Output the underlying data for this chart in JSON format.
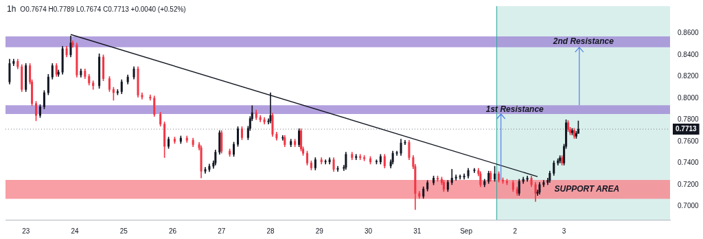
{
  "chart_data": {
    "type": "candlestick",
    "title": "1h",
    "subtitle": "O0.7674 H0.7789 L0.7674 C0.7713 +0.0040 (+0.52%)",
    "x": [
      "--08-22T16:00",
      "--08-22T18:00",
      "--08-22T20:00",
      "--08-22T22:00",
      "--08-23T00:00",
      "--08-23T02:00",
      "--08-23T03:00",
      "--08-23T05:00",
      "--08-23T07:00",
      "--08-23T09:00",
      "--08-23T11:00",
      "--08-23T13:00",
      "--08-23T15:00",
      "--08-23T16:00",
      "--08-23T18:00",
      "--08-23T20:00",
      "--08-23T22:00",
      "--08-23T23:00",
      "--08-24T01:00",
      "--08-24T03:00",
      "--08-24T05:00",
      "--08-24T07:00",
      "--08-24T09:00",
      "--08-24T12:00",
      "--08-24T14:00",
      "--08-24T17:00",
      "--08-24T19:00",
      "--08-24T21:00",
      "--08-24T23:00",
      "--08-25T02:00",
      "--08-25T05:00",
      "--08-25T07:00",
      "--08-25T09:00",
      "--08-25T13:00",
      "--08-25T15:00",
      "--08-25T18:00",
      "--08-25T20:00",
      "--08-25T22:00",
      "--08-26T01:00",
      "--08-26T04:00",
      "--08-26T07:00",
      "--08-26T10:00",
      "--08-26T13:00",
      "--08-26T14:00",
      "--08-26T16:00",
      "--08-26T18:00",
      "--08-26T20:00",
      "--08-26T21:00",
      "--08-26T23:00",
      "--08-27T00:00",
      "--08-27T04:00",
      "--08-27T06:00",
      "--08-27T08:00",
      "--08-27T10:00",
      "--08-27T13:00",
      "--08-27T14:00",
      "--08-27T15:00",
      "--08-27T17:00",
      "--08-27T19:00",
      "--08-27T21:00",
      "--08-27T23:00",
      "--08-28T00:00",
      "--08-28T01:00",
      "--08-28T03:00",
      "--08-28T06:00",
      "--08-28T07:00",
      "--08-28T10:00",
      "--08-28T12:00",
      "--08-28T14:00",
      "--08-28T15:00",
      "--08-28T16:00",
      "--08-28T18:00",
      "--08-28T20:00",
      "--08-28T22:00",
      "--08-29T01:00",
      "--08-29T03:00",
      "--08-29T05:00",
      "--08-29T07:00",
      "--08-29T09:00",
      "--08-29T12:00",
      "--08-29T13:00",
      "--08-29T16:00",
      "--08-29T18:00",
      "--08-29T20:00",
      "--08-29T22:00",
      "--08-30T01:00",
      "--08-30T04:00",
      "--08-30T06:00",
      "--08-30T08:00",
      "--08-30T11:00",
      "--08-30T12:00",
      "--08-30T14:00",
      "--08-30T16:00",
      "--08-30T18:00",
      "--08-30T20:00",
      "--08-30T22:00",
      "--08-30T23:00",
      "--08-31T01:00",
      "--08-31T03:00",
      "--08-31T05:00",
      "--08-31T08:00",
      "--08-31T10:00",
      "--08-31T12:00",
      "--08-31T13:00",
      "--08-31T15:00",
      "--08-31T17:00",
      "--08-31T19:00",
      "--08-31T21:00",
      "--08-31T23:00",
      "--09-01T01:00",
      "--09-01T04:00",
      "--09-01T06:00",
      "--09-01T07:00",
      "--09-01T09:00",
      "--09-01T11:00",
      "--09-01T12:00",
      "--09-01T14:00",
      "--09-01T16:00",
      "--09-01T18:00",
      "--09-01T20:00",
      "--09-01T23:00",
      "--09-02T01:00",
      "--09-02T02:00",
      "--09-02T04:00",
      "--09-02T06:00",
      "--09-02T08:00",
      "--09-02T10:00",
      "--09-02T11:00",
      "--09-02T12:00",
      "--09-02T14:00",
      "--09-02T16:00",
      "--09-02T17:00",
      "--09-02T19:00",
      "--09-02T21:00",
      "--09-02T22:00",
      "--09-02T23:00",
      "--09-03T00:00",
      "--09-03T01:00",
      "--09-03T02:00",
      "--09-03T03:00",
      "--09-03T04:00",
      "--09-03T05:00",
      "--09-03T06:00",
      "--09-03T07:00"
    ],
    "ohlc": [
      [
        0.815,
        0.836,
        0.813,
        0.832
      ],
      [
        0.832,
        0.836,
        0.83,
        0.834
      ],
      [
        0.834,
        0.836,
        0.827,
        0.829
      ],
      [
        0.829,
        0.831,
        0.806,
        0.808
      ],
      [
        0.808,
        0.832,
        0.806,
        0.83
      ],
      [
        0.83,
        0.832,
        0.813,
        0.815
      ],
      [
        0.815,
        0.817,
        0.793,
        0.795
      ],
      [
        0.795,
        0.797,
        0.779,
        0.784
      ],
      [
        0.784,
        0.794,
        0.782,
        0.792
      ],
      [
        0.792,
        0.807,
        0.79,
        0.805
      ],
      [
        0.805,
        0.822,
        0.803,
        0.8195
      ],
      [
        0.8195,
        0.832,
        0.8175,
        0.83
      ],
      [
        0.83,
        0.832,
        0.82,
        0.822
      ],
      [
        0.822,
        0.826,
        0.82,
        0.824
      ],
      [
        0.824,
        0.848,
        0.822,
        0.8457
      ],
      [
        0.8457,
        0.848,
        0.838,
        0.84
      ],
      [
        0.84,
        0.8575,
        0.838,
        0.851
      ],
      [
        0.851,
        0.853,
        0.847,
        0.849
      ],
      [
        0.849,
        0.851,
        0.8194,
        0.8214
      ],
      [
        0.8214,
        0.827,
        0.8194,
        0.825
      ],
      [
        0.825,
        0.827,
        0.818,
        0.82
      ],
      [
        0.82,
        0.822,
        0.812,
        0.814
      ],
      [
        0.814,
        0.816,
        0.808,
        0.8114
      ],
      [
        0.8114,
        0.841,
        0.809,
        0.838
      ],
      [
        0.838,
        0.84,
        0.816,
        0.818
      ],
      [
        0.818,
        0.82,
        0.806,
        0.808
      ],
      [
        0.808,
        0.81,
        0.798,
        0.805
      ],
      [
        0.805,
        0.808,
        0.803,
        0.806
      ],
      [
        0.806,
        0.817,
        0.804,
        0.815
      ],
      [
        0.815,
        0.8215,
        0.813,
        0.8195
      ],
      [
        0.8195,
        0.829,
        0.8175,
        0.827
      ],
      [
        0.827,
        0.829,
        0.8007,
        0.8027
      ],
      [
        0.8027,
        0.805,
        0.799,
        0.801
      ],
      [
        0.801,
        0.803,
        0.798,
        0.8
      ],
      [
        0.8,
        0.802,
        0.783,
        0.785
      ],
      [
        0.785,
        0.787,
        0.774,
        0.776
      ],
      [
        0.776,
        0.778,
        0.745,
        0.7554
      ],
      [
        0.7554,
        0.764,
        0.7534,
        0.762
      ],
      [
        0.762,
        0.764,
        0.758,
        0.76
      ],
      [
        0.76,
        0.765,
        0.758,
        0.763
      ],
      [
        0.763,
        0.765,
        0.759,
        0.761
      ],
      [
        0.761,
        0.763,
        0.755,
        0.757
      ],
      [
        0.757,
        0.759,
        0.752,
        0.754
      ],
      [
        0.754,
        0.756,
        0.7261,
        0.7324
      ],
      [
        0.7324,
        0.736,
        0.7304,
        0.734
      ],
      [
        0.734,
        0.739,
        0.732,
        0.737
      ],
      [
        0.737,
        0.742,
        0.735,
        0.74
      ],
      [
        0.74,
        0.752,
        0.738,
        0.75
      ],
      [
        0.75,
        0.77,
        0.748,
        0.768
      ],
      [
        0.768,
        0.77,
        0.749,
        0.751
      ],
      [
        0.751,
        0.753,
        0.746,
        0.748
      ],
      [
        0.748,
        0.7593,
        0.746,
        0.7573
      ],
      [
        0.7573,
        0.7736,
        0.7553,
        0.7716
      ],
      [
        0.7716,
        0.7736,
        0.7615,
        0.7635
      ],
      [
        0.7635,
        0.774,
        0.7615,
        0.772
      ],
      [
        0.772,
        0.783,
        0.77,
        0.781
      ],
      [
        0.781,
        0.793,
        0.779,
        0.7865
      ],
      [
        0.7865,
        0.789,
        0.78,
        0.782
      ],
      [
        0.782,
        0.784,
        0.778,
        0.78
      ],
      [
        0.78,
        0.782,
        0.776,
        0.778
      ],
      [
        0.778,
        0.781,
        0.776,
        0.779
      ],
      [
        0.779,
        0.805,
        0.777,
        0.784
      ],
      [
        0.784,
        0.786,
        0.7646,
        0.7666
      ],
      [
        0.7666,
        0.7686,
        0.761,
        0.763
      ],
      [
        0.763,
        0.7655,
        0.761,
        0.7635
      ],
      [
        0.7635,
        0.7655,
        0.755,
        0.757
      ],
      [
        0.757,
        0.762,
        0.755,
        0.76
      ],
      [
        0.76,
        0.762,
        0.755,
        0.757
      ],
      [
        0.757,
        0.7717,
        0.755,
        0.7697
      ],
      [
        0.7697,
        0.7717,
        0.751,
        0.753
      ],
      [
        0.753,
        0.755,
        0.747,
        0.749
      ],
      [
        0.749,
        0.751,
        0.738,
        0.74
      ],
      [
        0.74,
        0.742,
        0.7335,
        0.7355
      ],
      [
        0.7355,
        0.745,
        0.7335,
        0.743
      ],
      [
        0.743,
        0.745,
        0.739,
        0.741
      ],
      [
        0.741,
        0.743,
        0.739,
        0.741
      ],
      [
        0.741,
        0.745,
        0.739,
        0.743
      ],
      [
        0.743,
        0.745,
        0.7322,
        0.7342
      ],
      [
        0.7342,
        0.737,
        0.7322,
        0.735
      ],
      [
        0.735,
        0.738,
        0.733,
        0.736
      ],
      [
        0.736,
        0.75,
        0.734,
        0.748
      ],
      [
        0.748,
        0.75,
        0.743,
        0.745
      ],
      [
        0.745,
        0.748,
        0.743,
        0.746
      ],
      [
        0.746,
        0.748,
        0.743,
        0.745
      ],
      [
        0.745,
        0.747,
        0.742,
        0.744
      ],
      [
        0.744,
        0.746,
        0.739,
        0.741
      ],
      [
        0.741,
        0.743,
        0.739,
        0.741
      ],
      [
        0.741,
        0.748,
        0.739,
        0.746
      ],
      [
        0.746,
        0.748,
        0.7353,
        0.7373
      ],
      [
        0.7373,
        0.743,
        0.7353,
        0.741
      ],
      [
        0.741,
        0.751,
        0.739,
        0.749
      ],
      [
        0.749,
        0.751,
        0.747,
        0.749
      ],
      [
        0.749,
        0.762,
        0.747,
        0.7585
      ],
      [
        0.7585,
        0.761,
        0.757,
        0.759
      ],
      [
        0.759,
        0.761,
        0.743,
        0.745
      ],
      [
        0.745,
        0.747,
        0.7347,
        0.7367
      ],
      [
        0.7367,
        0.7387,
        0.6969,
        0.7118
      ],
      [
        0.7118,
        0.7138,
        0.7073,
        0.7093
      ],
      [
        0.7093,
        0.718,
        0.7073,
        0.716
      ],
      [
        0.716,
        0.7238,
        0.714,
        0.7218
      ],
      [
        0.7218,
        0.728,
        0.7198,
        0.726
      ],
      [
        0.726,
        0.728,
        0.723,
        0.725
      ],
      [
        0.725,
        0.727,
        0.72,
        0.722
      ],
      [
        0.722,
        0.724,
        0.7136,
        0.7156
      ],
      [
        0.7156,
        0.724,
        0.7136,
        0.722
      ],
      [
        0.722,
        0.7342,
        0.72,
        0.726
      ],
      [
        0.726,
        0.729,
        0.724,
        0.727
      ],
      [
        0.727,
        0.729,
        0.725,
        0.727
      ],
      [
        0.727,
        0.73,
        0.725,
        0.728
      ],
      [
        0.728,
        0.735,
        0.726,
        0.733
      ],
      [
        0.733,
        0.735,
        0.731,
        0.733
      ],
      [
        0.733,
        0.735,
        0.728,
        0.73
      ],
      [
        0.73,
        0.732,
        0.718,
        0.72
      ],
      [
        0.72,
        0.725,
        0.718,
        0.723
      ],
      [
        0.723,
        0.7325,
        0.721,
        0.7305
      ],
      [
        0.7305,
        0.7325,
        0.723,
        0.725
      ],
      [
        0.725,
        0.737,
        0.723,
        0.73
      ],
      [
        0.73,
        0.732,
        0.7223,
        0.7243
      ],
      [
        0.7243,
        0.7263,
        0.721,
        0.723
      ],
      [
        0.723,
        0.725,
        0.7198,
        0.7218
      ],
      [
        0.7218,
        0.7238,
        0.7136,
        0.7156
      ],
      [
        0.7156,
        0.7176,
        0.71,
        0.712
      ],
      [
        0.712,
        0.725,
        0.71,
        0.723
      ],
      [
        0.723,
        0.7269,
        0.721,
        0.7249
      ],
      [
        0.7249,
        0.728,
        0.7229,
        0.726
      ],
      [
        0.726,
        0.728,
        0.718,
        0.72
      ],
      [
        0.72,
        0.722,
        0.7044,
        0.712
      ],
      [
        0.712,
        0.715,
        0.71,
        0.713
      ],
      [
        0.713,
        0.722,
        0.711,
        0.72
      ],
      [
        0.72,
        0.724,
        0.718,
        0.722
      ],
      [
        0.722,
        0.726,
        0.72,
        0.724
      ],
      [
        0.724,
        0.7325,
        0.722,
        0.7305
      ],
      [
        0.7305,
        0.742,
        0.7285,
        0.74
      ],
      [
        0.74,
        0.744,
        0.738,
        0.742
      ],
      [
        0.742,
        0.7468,
        0.74,
        0.7448
      ],
      [
        0.7448,
        0.7468,
        0.738,
        0.74
      ],
      [
        0.74,
        0.7574,
        0.738,
        0.7554
      ],
      [
        0.7554,
        0.78,
        0.7534,
        0.7772
      ],
      [
        0.7772,
        0.7792,
        0.769,
        0.771
      ],
      [
        0.771,
        0.773,
        0.766,
        0.768
      ],
      [
        0.768,
        0.772,
        0.766,
        0.77
      ],
      [
        0.77,
        0.772,
        0.7627,
        0.7647
      ],
      [
        0.7647,
        0.7694,
        0.7627,
        0.7674
      ],
      [
        0.7674,
        0.7789,
        0.7674,
        0.7713
      ]
    ],
    "colors": [
      "#131722",
      "#131722",
      "#f23645",
      "#f23645",
      "#131722",
      "#f23645",
      "#f23645",
      "#f23645",
      "#131722",
      "#131722",
      "#131722",
      "#131722",
      "#f23645",
      "#131722",
      "#131722",
      "#f23645",
      "#131722",
      "#f23645",
      "#f23645",
      "#131722",
      "#f23645",
      "#f23645",
      "#f23645",
      "#131722",
      "#f23645",
      "#f23645",
      "#f23645",
      "#131722",
      "#131722",
      "#131722",
      "#131722",
      "#f23645",
      "#f23645",
      "#f23645",
      "#f23645",
      "#f23645",
      "#f23645",
      "#131722",
      "#f23645",
      "#131722",
      "#f23645",
      "#f23645",
      "#f23645",
      "#f23645",
      "#131722",
      "#131722",
      "#131722",
      "#131722",
      "#131722",
      "#f23645",
      "#f23645",
      "#131722",
      "#131722",
      "#f23645",
      "#131722",
      "#131722",
      "#131722",
      "#f23645",
      "#f23645",
      "#f23645",
      "#131722",
      "#131722",
      "#f23645",
      "#f23645",
      "#131722",
      "#f23645",
      "#131722",
      "#f23645",
      "#131722",
      "#f23645",
      "#f23645",
      "#f23645",
      "#f23645",
      "#131722",
      "#f23645",
      "#131722",
      "#131722",
      "#f23645",
      "#131722",
      "#131722",
      "#131722",
      "#f23645",
      "#131722",
      "#f23645",
      "#f23645",
      "#f23645",
      "#131722",
      "#131722",
      "#f23645",
      "#131722",
      "#131722",
      "#131722",
      "#131722",
      "#131722",
      "#f23645",
      "#f23645",
      "#f23645",
      "#f23645",
      "#131722",
      "#131722",
      "#131722",
      "#f23645",
      "#f23645",
      "#f23645",
      "#131722",
      "#131722",
      "#131722",
      "#131722",
      "#131722",
      "#131722",
      "#131722",
      "#f23645",
      "#f23645",
      "#131722",
      "#131722",
      "#f23645",
      "#131722",
      "#f23645",
      "#f23645",
      "#f23645",
      "#f23645",
      "#f23645",
      "#131722",
      "#131722",
      "#131722",
      "#f23645",
      "#f23645",
      "#131722",
      "#131722",
      "#131722",
      "#131722",
      "#131722",
      "#131722",
      "#131722",
      "#131722",
      "#f23645",
      "#131722",
      "#131722",
      "#f23645",
      "#f23645",
      "#131722",
      "#f23645",
      "#131722",
      "#131722"
    ],
    "series": [
      {
        "type": "line",
        "x": [
          "--08-23T22:00",
          "--09-02T11:00"
        ],
        "values": [
          0.8588,
          0.7274
        ],
        "color": "#131722"
      }
    ],
    "xlim": [
      "--08-22T14:00",
      "--09-05T04:00"
    ],
    "ylim": [
      0.6875,
      0.885
    ],
    "xticks": [
      {
        "value": "--08-23",
        "label": "23"
      },
      {
        "value": "--08-24",
        "label": "24"
      },
      {
        "value": "--08-25",
        "label": "25"
      },
      {
        "value": "--08-26",
        "label": "26"
      },
      {
        "value": "--08-27",
        "label": "27"
      },
      {
        "value": "--08-28",
        "label": "28"
      },
      {
        "value": "--08-29",
        "label": "29"
      },
      {
        "value": "--08-30",
        "label": "30"
      },
      {
        "value": "--08-31",
        "label": "31"
      },
      {
        "value": "--09-01",
        "label": "Sep"
      },
      {
        "value": "--09-02",
        "label": "2"
      },
      {
        "value": "--09-03",
        "label": "3"
      }
    ],
    "yticks": [
      {
        "value": 0.7,
        "label": "0.7000"
      },
      {
        "value": 0.72,
        "label": "0.7200"
      },
      {
        "value": 0.74,
        "label": "0.7400"
      },
      {
        "value": 0.76,
        "label": "0.7600"
      },
      {
        "value": 0.78,
        "label": "0.7800"
      },
      {
        "value": 0.8,
        "label": "0.8000"
      },
      {
        "value": 0.82,
        "label": "0.8200"
      },
      {
        "value": 0.84,
        "label": "0.8400"
      },
      {
        "value": 0.86,
        "label": "0.8600"
      }
    ],
    "bands": [
      {
        "axis": "x",
        "from": "--09-01T15:00",
        "to": "--09-05T04:00",
        "color": "#d9efec"
      },
      {
        "axis": "y",
        "from": 0.847,
        "to": 0.857,
        "color": "#9f88d6",
        "label": "2nd Resistance"
      },
      {
        "axis": "y",
        "from": 0.7853,
        "to": 0.7934,
        "color": "#9f88d6",
        "label": "1st Resistance"
      },
      {
        "axis": "y",
        "from": 0.7068,
        "to": 0.7243,
        "color": "#f6868f",
        "label": "SUPPORT AREA"
      }
    ],
    "ref_lines": [
      {
        "axis": "x",
        "value": "--09-01T15:00",
        "color": "#26a69a",
        "line_style": "solid"
      },
      {
        "axis": "y",
        "value": 0.7713,
        "label": "0.7713",
        "color": "#787b86",
        "line_style": "dotted"
      }
    ]
  }
}
